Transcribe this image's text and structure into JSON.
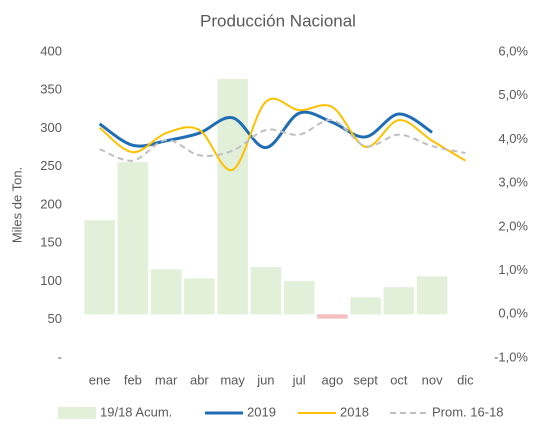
{
  "chart_data": {
    "type": "combo",
    "title": "Producción Nacional",
    "y_label": "Miles de Ton.",
    "categories": [
      "ene",
      "feb",
      "mar",
      "abr",
      "may",
      "jun",
      "jul",
      "ago",
      "sept",
      "oct",
      "nov",
      "dic"
    ],
    "ylim": [
      0,
      400
    ],
    "yticks": [
      {
        "value": 0,
        "label": "-"
      },
      50,
      100,
      150,
      200,
      250,
      300,
      350,
      400
    ],
    "y2lim": [
      -1,
      6
    ],
    "y2ticks": [
      {
        "value": -1,
        "label": "-1,0%"
      },
      {
        "value": 0,
        "label": "0,0%"
      },
      {
        "value": 1,
        "label": "1,0%"
      },
      {
        "value": 2,
        "label": "2,0%"
      },
      {
        "value": 3,
        "label": "3,0%"
      },
      {
        "value": 4,
        "label": "4,0%"
      },
      {
        "value": 5,
        "label": "5,0%"
      },
      {
        "value": 6,
        "label": "6,0%"
      }
    ],
    "grid": false,
    "legend": "bottom",
    "series": [
      {
        "name": "19/18 Acum.",
        "type": "bar",
        "axis": "y2",
        "color": "#e2f0d9",
        "negative_color": "#f4c0c0",
        "values": [
          2.15,
          3.48,
          1.03,
          0.82,
          5.38,
          1.08,
          0.76,
          -0.1,
          0.39,
          0.62,
          0.87,
          null
        ]
      },
      {
        "name": "2019",
        "type": "line",
        "color": "#1f6db5",
        "width": 3,
        "values": [
          306,
          278,
          284,
          294,
          314,
          275,
          320,
          308,
          289,
          319,
          295,
          null
        ]
      },
      {
        "name": "2018",
        "type": "line",
        "color": "#ffc000",
        "width": 2,
        "values": [
          301,
          269,
          294,
          298,
          246,
          335,
          324,
          328,
          276,
          311,
          284,
          258
        ]
      },
      {
        "name": "Prom. 16-18",
        "type": "line",
        "color": "#bfbfbf",
        "width": 2,
        "dashed": true,
        "values": [
          273,
          258,
          285,
          265,
          271,
          298,
          292,
          311,
          277,
          292,
          277,
          268
        ]
      }
    ]
  }
}
